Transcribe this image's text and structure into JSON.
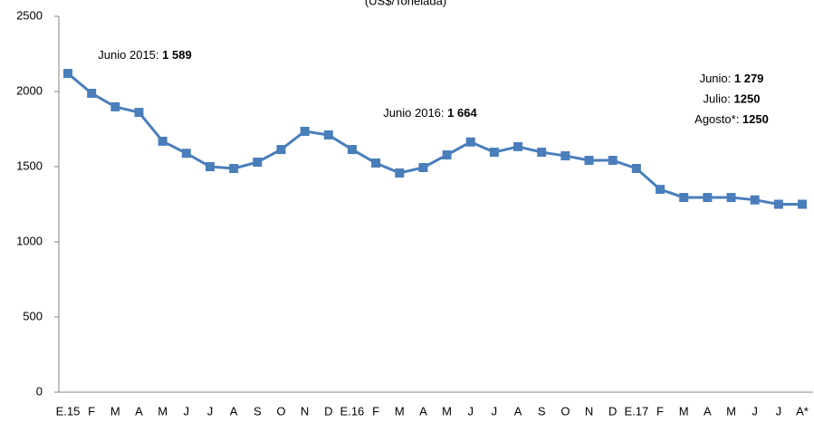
{
  "chart_data": {
    "type": "line",
    "subtitle": "(US$/Tonelada)",
    "categories": [
      "E.15",
      "F",
      "M",
      "A",
      "M",
      "J",
      "J",
      "A",
      "S",
      "O",
      "N",
      "D",
      "E.16",
      "F",
      "M",
      "A",
      "M",
      "J",
      "J",
      "A",
      "S",
      "O",
      "N",
      "D",
      "E.17",
      "F",
      "M",
      "A",
      "M",
      "J",
      "J",
      "A*"
    ],
    "series": [
      {
        "color": "#4a7ebb",
        "values": [
          2120,
          1988,
          1898,
          1861,
          1669,
          1589,
          1500,
          1488,
          1530,
          1614,
          1735,
          1711,
          1614,
          1524,
          1458,
          1494,
          1578,
          1664,
          1596,
          1633,
          1596,
          1572,
          1542,
          1542,
          1488,
          1349,
          1295,
          1295,
          1295,
          1279,
          1250,
          1250
        ]
      }
    ],
    "ylim": [
      0,
      2500
    ],
    "yticks": [
      0,
      500,
      1000,
      1500,
      2000,
      2500
    ],
    "grid": false,
    "annotations": [
      {
        "lines": [
          {
            "label": "Junio 2015:  ",
            "value": "1 589"
          }
        ]
      },
      {
        "lines": [
          {
            "label": "Junio 2016: ",
            "value": "1 664"
          }
        ]
      },
      {
        "lines": [
          {
            "label": "Junio: ",
            "value": "1 279"
          },
          {
            "label": "Julio: ",
            "value": "1250"
          },
          {
            "label": "Agosto*: ",
            "value": "1250"
          }
        ]
      }
    ]
  }
}
